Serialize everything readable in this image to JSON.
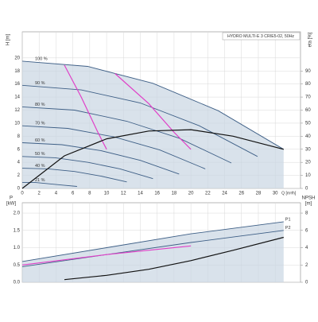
{
  "chart_data": [
    {
      "type": "line",
      "title": "HYDRO MULTI-E 3 CRIE5-02, 50Hz",
      "ylabel": "H [m]",
      "y2label": "eta [%]",
      "xlabel": "Q [m³/h]",
      "xlim": [
        0,
        33
      ],
      "xticks": [
        0,
        2,
        4,
        6,
        8,
        10,
        12,
        14,
        16,
        18,
        20,
        22,
        24,
        26,
        28,
        30
      ],
      "ylim": [
        0,
        24
      ],
      "yticks": [
        0,
        2,
        4,
        6,
        8,
        10,
        12,
        14,
        16,
        18,
        20
      ],
      "y2lim": [
        0,
        120
      ],
      "y2ticks": [
        0,
        10,
        20,
        30,
        40,
        50,
        60,
        70,
        80,
        90
      ],
      "grid": true,
      "shade_color": "#c9d6e3",
      "series": [
        {
          "name": "100 %",
          "color": "#3e5f86",
          "x": [
            0,
            7.75,
            15.5,
            23.25,
            31
          ],
          "values": [
            19.5,
            18.7,
            16.1,
            11.9,
            6.0
          ]
        },
        {
          "name": "90 %",
          "color": "#3e5f86",
          "x": [
            0,
            7,
            14,
            21,
            27.9
          ],
          "values": [
            15.8,
            15.1,
            13.1,
            9.6,
            4.9
          ]
        },
        {
          "name": "80 %",
          "color": "#3e5f86",
          "x": [
            0,
            6.2,
            12.4,
            18.6,
            24.8
          ],
          "values": [
            12.5,
            12.0,
            10.3,
            7.7,
            3.9
          ]
        },
        {
          "name": "70 %",
          "color": "#3e5f86",
          "x": [
            0,
            5.4,
            10.9,
            16.3,
            21.7
          ],
          "values": [
            9.6,
            9.2,
            7.9,
            5.9,
            3.0
          ]
        },
        {
          "name": "60 %",
          "color": "#3e5f86",
          "x": [
            0,
            4.7,
            9.3,
            14,
            18.6
          ],
          "values": [
            7.0,
            6.7,
            5.8,
            4.3,
            2.2
          ]
        },
        {
          "name": "50 %",
          "color": "#3e5f86",
          "x": [
            0,
            3.9,
            7.8,
            11.6,
            15.5
          ],
          "values": [
            4.9,
            4.7,
            4.0,
            3.0,
            1.5
          ]
        },
        {
          "name": "40 %",
          "color": "#3e5f86",
          "x": [
            0,
            3.1,
            6.2,
            9.3,
            12.4
          ],
          "values": [
            3.1,
            3.0,
            2.6,
            1.9,
            1.0
          ]
        },
        {
          "name": "21 %",
          "color": "#3e5f86",
          "x": [
            0,
            1.6,
            3.3,
            4.9,
            6.5
          ],
          "values": [
            0.9,
            0.9,
            0.7,
            0.5,
            0.3
          ]
        }
      ],
      "curves": [
        {
          "color": "#e040c8",
          "x": [
            5,
            7,
            9,
            10
          ],
          "values": [
            18.9,
            14,
            8.5,
            6
          ]
        },
        {
          "color": "#e040c8",
          "x": [
            11,
            15,
            18,
            20
          ],
          "values": [
            17.6,
            13,
            8.6,
            6
          ]
        },
        {
          "color": "#111111",
          "axis": "y2",
          "x": [
            0,
            5,
            10,
            15,
            20,
            25,
            31
          ],
          "values": [
            0,
            25,
            38,
            44,
            45,
            40,
            30
          ]
        }
      ]
    },
    {
      "type": "line",
      "ylabel": [
        "P",
        "[kW]"
      ],
      "y2label": [
        "NPSH",
        "[m]"
      ],
      "xlim": [
        0,
        33
      ],
      "xticks": [
        0,
        2,
        4,
        6,
        8,
        10,
        12,
        14,
        16,
        18,
        20,
        22,
        24,
        26,
        28,
        30
      ],
      "ylim": [
        0,
        2.3
      ],
      "yticks": [
        {
          "value": 0,
          "label": "0.0"
        },
        0.5,
        {
          "value": 1,
          "label": "1.0"
        },
        1.5,
        {
          "value": 2,
          "label": "2.0"
        }
      ],
      "y2lim": [
        0,
        9.2
      ],
      "y2ticks": [
        0,
        2,
        4,
        6,
        8
      ],
      "grid": true,
      "shade_color": "#c9d6e3",
      "series": [
        {
          "name": "P1",
          "color": "#3e5f86",
          "x": [
            0,
            10,
            20,
            31
          ],
          "values": [
            0.6,
            1.0,
            1.4,
            1.75
          ]
        },
        {
          "name": "P2",
          "color": "#3e5f86",
          "x": [
            0,
            10,
            20,
            31
          ],
          "values": [
            0.45,
            0.8,
            1.15,
            1.5
          ]
        }
      ],
      "curves": [
        {
          "color": "#e040c8",
          "x": [
            0,
            10,
            20
          ],
          "values": [
            0.5,
            0.8,
            1.05
          ]
        },
        {
          "color": "#111111",
          "axis": "y2",
          "x": [
            5,
            10,
            15,
            20,
            25,
            31
          ],
          "values": [
            0.3,
            0.8,
            1.5,
            2.5,
            3.7,
            5.2
          ]
        }
      ]
    }
  ]
}
